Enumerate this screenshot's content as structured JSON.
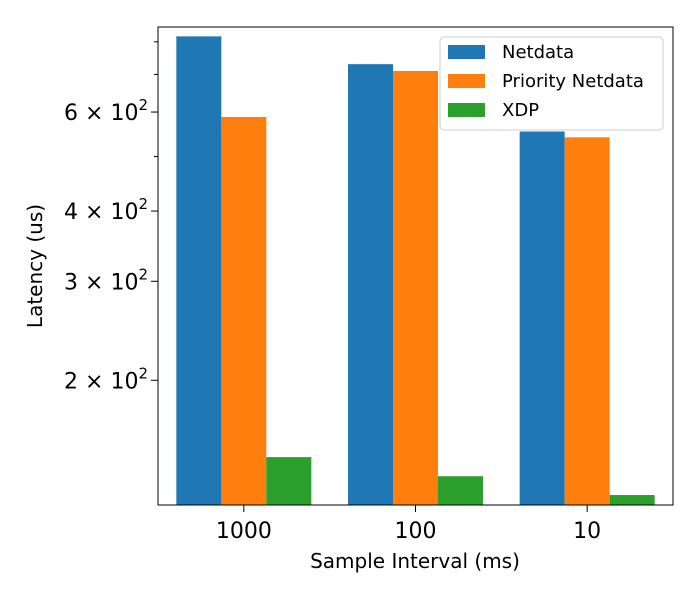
{
  "chart_data": {
    "type": "bar",
    "title": "",
    "xlabel": "Sample Interval (ms)",
    "ylabel": "Latency (us)",
    "yscale": "log",
    "ylim": [
      120,
      850
    ],
    "categories": [
      "1000",
      "100",
      "10"
    ],
    "series": [
      {
        "name": "Netdata",
        "color": "#1f77b4",
        "values": [
          818,
          730,
          554
        ]
      },
      {
        "name": "Priority Netdata",
        "color": "#ff7f0e",
        "values": [
          588,
          710,
          541
        ]
      },
      {
        "name": "XDP",
        "color": "#2ca02c",
        "values": [
          146,
          135,
          125
        ]
      }
    ],
    "yticks": [
      {
        "value": 200,
        "mantissa": "2",
        "base": "10",
        "exponent": "2"
      },
      {
        "value": 300,
        "mantissa": "3",
        "base": "10",
        "exponent": "2"
      },
      {
        "value": 400,
        "mantissa": "4",
        "base": "10",
        "exponent": "2"
      },
      {
        "value": 600,
        "mantissa": "6",
        "base": "10",
        "exponent": "2"
      }
    ],
    "minor_yticks": [
      500,
      700,
      800
    ],
    "legend": {
      "position": "top-right"
    },
    "grid": false
  }
}
